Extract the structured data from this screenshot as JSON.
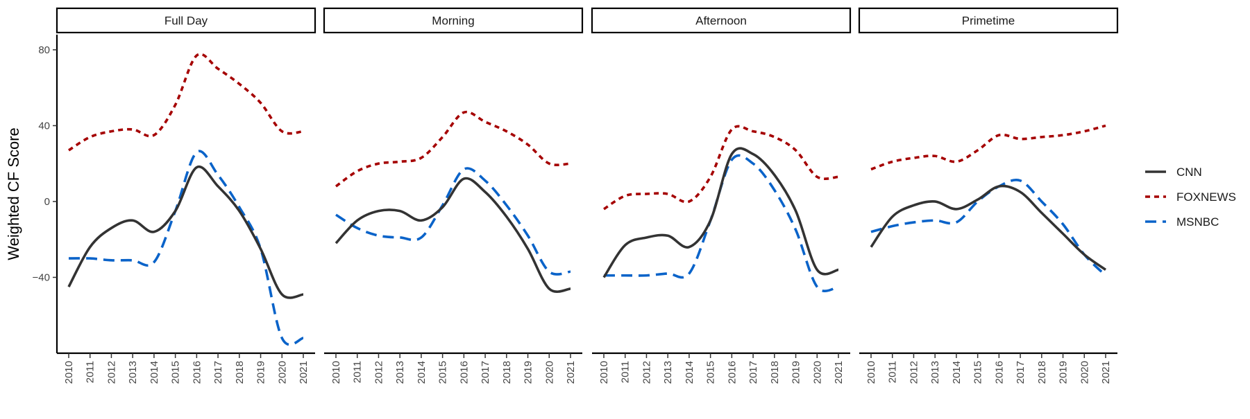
{
  "chart_data": {
    "type": "line",
    "ylabel": "Weighted CF Score",
    "xlabel": "",
    "x": [
      "2010",
      "2011",
      "2012",
      "2013",
      "2014",
      "2015",
      "2016",
      "2017",
      "2018",
      "2019",
      "2020",
      "2021"
    ],
    "y_ticks": [
      80,
      40,
      0,
      -40
    ],
    "ylim": [
      -80,
      88
    ],
    "grid": false,
    "legend_position": "right",
    "series_styles": [
      {
        "name": "CNN",
        "color": "#333333",
        "dash": "solid"
      },
      {
        "name": "FOXNEWS",
        "color": "#a50000",
        "dash": "dotted"
      },
      {
        "name": "MSNBC",
        "color": "#0a63c9",
        "dash": "dashed"
      }
    ],
    "panels": [
      {
        "title": "Full Day",
        "series": [
          {
            "name": "CNN",
            "values": [
              -45,
              -24,
              -14,
              -10,
              -16,
              -5,
              18,
              8,
              -5,
              -25,
              -49,
              -49
            ]
          },
          {
            "name": "FOXNEWS",
            "values": [
              27,
              34,
              37,
              38,
              35,
              51,
              77,
              70,
              62,
              52,
              37,
              37
            ]
          },
          {
            "name": "MSNBC",
            "values": [
              -30,
              -30,
              -31,
              -31,
              -32,
              -5,
              26,
              14,
              -3,
              -25,
              -72,
              -72
            ]
          }
        ]
      },
      {
        "title": "Morning",
        "series": [
          {
            "name": "CNN",
            "values": [
              -22,
              -10,
              -5,
              -5,
              -10,
              -3,
              12,
              5,
              -8,
              -25,
              -46,
              -46
            ]
          },
          {
            "name": "FOXNEWS",
            "values": [
              8,
              16,
              20,
              21,
              23,
              34,
              47,
              42,
              37,
              30,
              20,
              20
            ]
          },
          {
            "name": "MSNBC",
            "values": [
              -7,
              -14,
              -18,
              -19,
              -19,
              -2,
              17,
              11,
              -2,
              -18,
              -37,
              -37
            ]
          }
        ]
      },
      {
        "title": "Afternoon",
        "series": [
          {
            "name": "CNN",
            "values": [
              -40,
              -23,
              -19,
              -18,
              -24,
              -10,
              25,
              25,
              14,
              -5,
              -36,
              -36
            ]
          },
          {
            "name": "FOXNEWS",
            "values": [
              -4,
              3,
              4,
              4,
              0,
              13,
              38,
              37,
              34,
              27,
              13,
              13
            ]
          },
          {
            "name": "MSNBC",
            "values": [
              -39,
              -39,
              -39,
              -38,
              -38,
              -10,
              22,
              20,
              6,
              -15,
              -45,
              -45
            ]
          }
        ]
      },
      {
        "title": "Primetime",
        "series": [
          {
            "name": "CNN",
            "values": [
              -24,
              -8,
              -2,
              0,
              -4,
              1,
              8,
              5,
              -6,
              -17,
              -28,
              -36
            ]
          },
          {
            "name": "FOXNEWS",
            "values": [
              17,
              21,
              23,
              24,
              21,
              27,
              35,
              33,
              34,
              35,
              37,
              40
            ]
          },
          {
            "name": "MSNBC",
            "values": [
              -16,
              -13,
              -11,
              -10,
              -11,
              0,
              8,
              11,
              0,
              -12,
              -28,
              -39
            ]
          }
        ]
      }
    ]
  }
}
